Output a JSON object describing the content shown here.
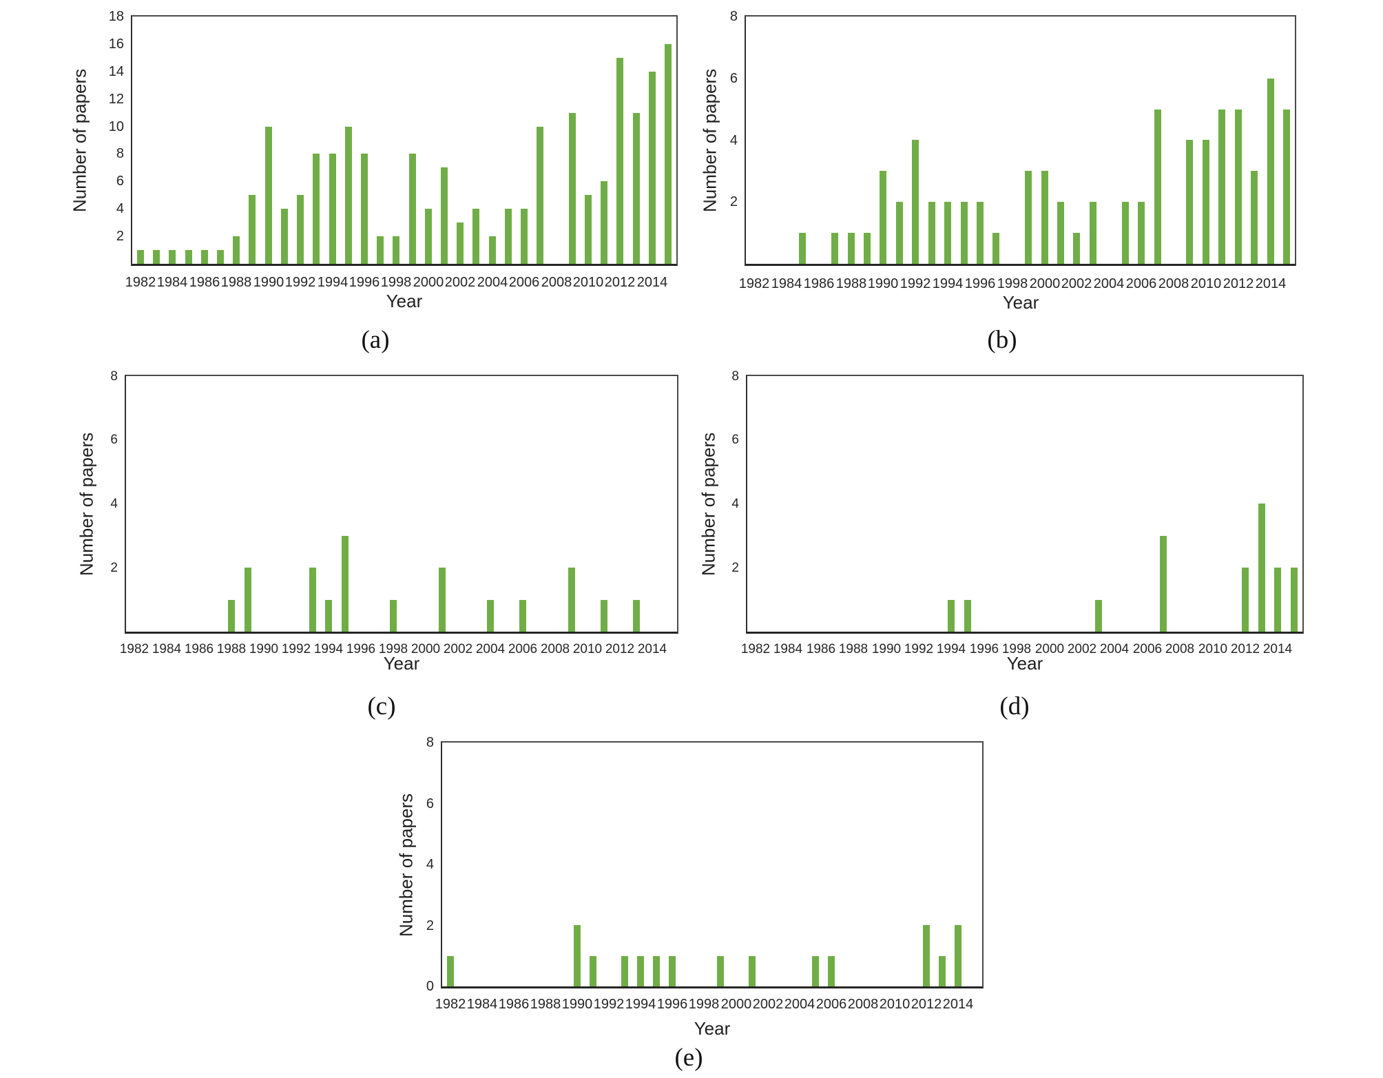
{
  "figure": {
    "background_color": "#ffffff",
    "bar_color": "#70AD47",
    "axis_line_color": "#4a4a4a",
    "text_color": "#262626"
  },
  "chart_data": [
    {
      "id": "a",
      "type": "bar",
      "caption": "(a)",
      "xlabel": "Year",
      "ylabel": "Number of papers",
      "ylim": [
        0,
        18
      ],
      "ytick_labels": [
        2,
        4,
        6,
        8,
        10,
        12,
        14,
        16,
        18
      ],
      "xtick_labels": [
        1982,
        1984,
        1986,
        1988,
        1990,
        1992,
        1994,
        1996,
        1998,
        2000,
        2002,
        2004,
        2006,
        2008,
        2010,
        2012,
        2014
      ],
      "grid": false,
      "legend": "none",
      "x": [
        1982,
        1983,
        1984,
        1985,
        1986,
        1987,
        1988,
        1989,
        1990,
        1991,
        1992,
        1993,
        1994,
        1995,
        1996,
        1997,
        1998,
        1999,
        2000,
        2001,
        2002,
        2003,
        2004,
        2005,
        2006,
        2007,
        2008,
        2009,
        2010,
        2011,
        2012,
        2013,
        2014,
        2015
      ],
      "values": [
        1,
        1,
        1,
        1,
        1,
        1,
        2,
        5,
        10,
        4,
        5,
        8,
        8,
        10,
        8,
        2,
        2,
        8,
        4,
        7,
        3,
        4,
        2,
        4,
        4,
        10,
        0,
        11,
        5,
        6,
        15,
        11,
        14,
        16
      ]
    },
    {
      "id": "b",
      "type": "bar",
      "caption": "(b)",
      "xlabel": "Year",
      "ylabel": "Number of papers",
      "ylim": [
        0,
        8
      ],
      "ytick_labels": [
        2,
        4,
        6,
        8
      ],
      "xtick_labels": [
        1982,
        1984,
        1986,
        1988,
        1990,
        1992,
        1994,
        1996,
        1998,
        2000,
        2002,
        2004,
        2006,
        2008,
        2010,
        2012,
        2014
      ],
      "grid": false,
      "legend": "none",
      "x": [
        1982,
        1983,
        1984,
        1985,
        1986,
        1987,
        1988,
        1989,
        1990,
        1991,
        1992,
        1993,
        1994,
        1995,
        1996,
        1997,
        1998,
        1999,
        2000,
        2001,
        2002,
        2003,
        2004,
        2005,
        2006,
        2007,
        2008,
        2009,
        2010,
        2011,
        2012,
        2013,
        2014,
        2015
      ],
      "values": [
        0,
        0,
        0,
        1,
        0,
        1,
        1,
        1,
        3,
        2,
        4,
        2,
        2,
        2,
        2,
        1,
        0,
        3,
        3,
        2,
        1,
        2,
        0,
        2,
        2,
        5,
        0,
        4,
        4,
        5,
        5,
        3,
        6,
        5
      ]
    },
    {
      "id": "c",
      "type": "bar",
      "caption": "(c)",
      "xlabel": "Year",
      "ylabel": "Number of papers",
      "ylim": [
        0,
        8
      ],
      "ytick_labels": [
        2,
        4,
        6,
        8
      ],
      "xtick_labels": [
        1982,
        1984,
        1986,
        1988,
        1990,
        1992,
        1994,
        1996,
        1998,
        2000,
        2002,
        2004,
        2006,
        2008,
        2010,
        2012,
        2014
      ],
      "grid": false,
      "legend": "none",
      "x": [
        1982,
        1983,
        1984,
        1985,
        1986,
        1987,
        1988,
        1989,
        1990,
        1991,
        1992,
        1993,
        1994,
        1995,
        1996,
        1997,
        1998,
        1999,
        2000,
        2001,
        2002,
        2003,
        2004,
        2005,
        2006,
        2007,
        2008,
        2009,
        2010,
        2011,
        2012,
        2013,
        2014,
        2015
      ],
      "values": [
        0,
        0,
        0,
        0,
        0,
        0,
        1,
        2,
        0,
        0,
        0,
        2,
        1,
        3,
        0,
        0,
        1,
        0,
        0,
        2,
        0,
        0,
        1,
        0,
        1,
        0,
        0,
        2,
        0,
        1,
        0,
        1,
        0,
        0
      ]
    },
    {
      "id": "d",
      "type": "bar",
      "caption": "(d)",
      "xlabel": "Year",
      "ylabel": "Number of papers",
      "ylim": [
        0,
        8
      ],
      "ytick_labels": [
        2,
        4,
        6,
        8
      ],
      "xtick_labels": [
        1982,
        1984,
        1986,
        1988,
        1990,
        1992,
        1994,
        1996,
        1998,
        2000,
        2002,
        2004,
        2006,
        2008,
        2010,
        2012,
        2014
      ],
      "grid": false,
      "legend": "none",
      "x": [
        1982,
        1983,
        1984,
        1985,
        1986,
        1987,
        1988,
        1989,
        1990,
        1991,
        1992,
        1993,
        1994,
        1995,
        1996,
        1997,
        1998,
        1999,
        2000,
        2001,
        2002,
        2003,
        2004,
        2005,
        2006,
        2007,
        2008,
        2009,
        2010,
        2011,
        2012,
        2013,
        2014,
        2015
      ],
      "values": [
        0,
        0,
        0,
        0,
        0,
        0,
        0,
        0,
        0,
        0,
        0,
        0,
        1,
        1,
        0,
        0,
        0,
        0,
        0,
        0,
        0,
        1,
        0,
        0,
        0,
        3,
        0,
        0,
        0,
        0,
        2,
        4,
        2,
        2
      ]
    },
    {
      "id": "e",
      "type": "bar",
      "caption": "(e)",
      "xlabel": "Year",
      "ylabel": "Number of papers",
      "ylim": [
        0,
        8
      ],
      "ytick_labels": [
        0,
        2,
        4,
        6,
        8
      ],
      "xtick_labels": [
        1982,
        1984,
        1986,
        1988,
        1990,
        1992,
        1994,
        1996,
        1998,
        2000,
        2002,
        2004,
        2006,
        2008,
        2010,
        2012,
        2014
      ],
      "grid": false,
      "legend": "none",
      "x": [
        1982,
        1983,
        1984,
        1985,
        1986,
        1987,
        1988,
        1989,
        1990,
        1991,
        1992,
        1993,
        1994,
        1995,
        1996,
        1997,
        1998,
        1999,
        2000,
        2001,
        2002,
        2003,
        2004,
        2005,
        2006,
        2007,
        2008,
        2009,
        2010,
        2011,
        2012,
        2013,
        2014,
        2015
      ],
      "values": [
        1,
        0,
        0,
        0,
        0,
        0,
        0,
        0,
        2,
        1,
        0,
        1,
        1,
        1,
        1,
        0,
        0,
        1,
        0,
        1,
        0,
        0,
        0,
        1,
        1,
        0,
        0,
        0,
        0,
        0,
        2,
        1,
        2,
        0
      ]
    }
  ]
}
